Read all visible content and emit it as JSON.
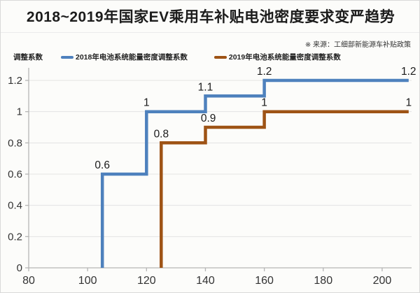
{
  "title": "2018~2019年国家EV乘用车补贴电池密度要求变严趋势",
  "source_note": "※ 来源：工细部新能源车补贴政策",
  "axis_title": "调整系数",
  "legend": [
    {
      "label": "2018年电池系统能量密度调整系数",
      "color": "#4e81bd"
    },
    {
      "label": "2019年电池系统能量密度调整系数",
      "color": "#9e5315"
    }
  ],
  "colors": {
    "series_2018": "#4e81bd",
    "series_2019": "#9e5315",
    "grid": "#e3e3e3",
    "axis": "#b5b5b5",
    "tick_text": "#333333",
    "data_label_text": "#1a1a1a"
  },
  "chart_data": {
    "type": "line",
    "subtype": "step",
    "title": "2018~2019年国家EV乘用车补贴电池密度要求变严趋势",
    "xlabel": "",
    "ylabel": "调整系数",
    "xlim": [
      80,
      210
    ],
    "ylim": [
      0,
      1.2
    ],
    "x_ticks": [
      80,
      100,
      120,
      140,
      160,
      180,
      200
    ],
    "y_ticks": [
      0,
      0.2,
      0.4,
      0.6,
      0.8,
      1,
      1.2
    ],
    "grid": "horizontal",
    "legend_position": "top",
    "series": [
      {
        "name": "2018年电池系统能量密度调整系数",
        "color": "#4e81bd",
        "points": [
          [
            105,
            0
          ],
          [
            105,
            0.6
          ],
          [
            120,
            0.6
          ],
          [
            120,
            1
          ],
          [
            140,
            1
          ],
          [
            140,
            1.1
          ],
          [
            160,
            1.1
          ],
          [
            160,
            1.2
          ],
          [
            209,
            1.2
          ]
        ],
        "labels": [
          {
            "x": 105,
            "y": 0.6,
            "text": "0.6"
          },
          {
            "x": 120,
            "y": 1,
            "text": "1"
          },
          {
            "x": 140,
            "y": 1.1,
            "text": "1.1"
          },
          {
            "x": 160,
            "y": 1.2,
            "text": "1.2"
          },
          {
            "x": 209,
            "y": 1.2,
            "text": "1.2"
          }
        ]
      },
      {
        "name": "2019年电池系统能量密度调整系数",
        "color": "#9e5315",
        "points": [
          [
            125,
            0
          ],
          [
            125,
            0.8
          ],
          [
            140,
            0.8
          ],
          [
            140,
            0.9
          ],
          [
            160,
            0.9
          ],
          [
            160,
            1
          ],
          [
            209,
            1
          ]
        ],
        "labels": [
          {
            "x": 125,
            "y": 0.8,
            "text": "0.8"
          },
          {
            "x": 141,
            "y": 0.9,
            "text": "0.9"
          },
          {
            "x": 160,
            "y": 1,
            "text": "1"
          },
          {
            "x": 209,
            "y": 1,
            "text": "1"
          }
        ]
      }
    ]
  }
}
